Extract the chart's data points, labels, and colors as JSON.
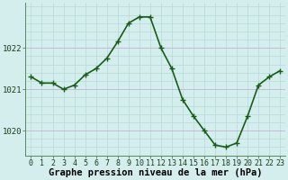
{
  "hours": [
    0,
    1,
    2,
    3,
    4,
    5,
    6,
    7,
    8,
    9,
    10,
    11,
    12,
    13,
    14,
    15,
    16,
    17,
    18,
    19,
    20,
    21,
    22,
    23
  ],
  "pressure": [
    1021.3,
    1021.15,
    1021.15,
    1021.0,
    1021.1,
    1021.35,
    1021.5,
    1021.75,
    1022.15,
    1022.6,
    1022.75,
    1022.75,
    1022.0,
    1021.5,
    1020.75,
    1020.35,
    1020.0,
    1019.65,
    1019.6,
    1019.7,
    1020.35,
    1021.1,
    1021.3,
    1021.45
  ],
  "line_color": "#1a5c1a",
  "marker_color": "#1a5c1a",
  "bg_color": "#d4eeee",
  "grid_minor_color": "#b8d8d8",
  "grid_major_color": "#c8b8d8",
  "xlabel": "Graphe pression niveau de la mer (hPa)",
  "ylim": [
    1019.4,
    1023.1
  ],
  "yticks": [
    1020,
    1021,
    1022
  ],
  "xticks": [
    0,
    1,
    2,
    3,
    4,
    5,
    6,
    7,
    8,
    9,
    10,
    11,
    12,
    13,
    14,
    15,
    16,
    17,
    18,
    19,
    20,
    21,
    22,
    23
  ],
  "xlabel_fontsize": 7.5,
  "tick_fontsize": 6.5,
  "line_width": 1.2,
  "marker_size": 2.5,
  "figsize": [
    3.2,
    2.0
  ],
  "dpi": 100
}
